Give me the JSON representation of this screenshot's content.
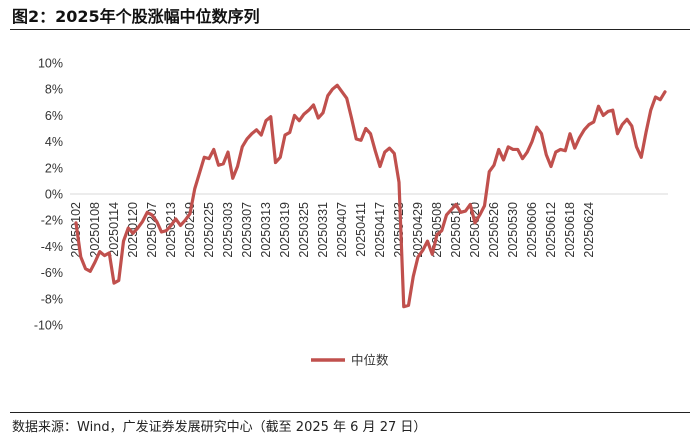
{
  "figure": {
    "title": "图2：2025年个股涨幅中位数序列",
    "source": "数据来源：Wind，广发证券发展研究中心（截至 2025 年 6 月 27 日）"
  },
  "chart_data": {
    "type": "line",
    "title": "",
    "xlabel": "",
    "ylabel": "",
    "ylim": [
      -0.1,
      0.1
    ],
    "y_ticks": [
      "10%",
      "8%",
      "6%",
      "4%",
      "2%",
      "0%",
      "-2%",
      "-4%",
      "-6%",
      "-8%",
      "-10%"
    ],
    "x_tick_labels": [
      "20250102",
      "20250108",
      "20250114",
      "20250120",
      "20250207",
      "20250213",
      "20250219",
      "20250225",
      "20250303",
      "20250307",
      "20250313",
      "20250319",
      "20250325",
      "20250331",
      "20250407",
      "20250411",
      "20250417",
      "20250423",
      "20250429",
      "20250508",
      "20250514",
      "20250520",
      "20250526",
      "20250530",
      "20250606",
      "20250612",
      "20250618",
      "20250624"
    ],
    "x_tick_every": 4,
    "legend_position": "bottom-center",
    "grid": false,
    "line_color": "#c0504d",
    "series": [
      {
        "name": "中位数",
        "values": [
          -0.022,
          -0.048,
          -0.057,
          -0.059,
          -0.052,
          -0.044,
          -0.047,
          -0.045,
          -0.068,
          -0.066,
          -0.036,
          -0.026,
          -0.03,
          -0.026,
          -0.021,
          -0.014,
          -0.016,
          -0.021,
          -0.029,
          -0.028,
          -0.024,
          -0.019,
          -0.024,
          -0.02,
          -0.015,
          0.004,
          0.016,
          0.028,
          0.027,
          0.034,
          0.022,
          0.023,
          0.032,
          0.012,
          0.021,
          0.036,
          0.042,
          0.046,
          0.049,
          0.045,
          0.056,
          0.059,
          0.024,
          0.028,
          0.045,
          0.047,
          0.06,
          0.056,
          0.061,
          0.064,
          0.068,
          0.058,
          0.062,
          0.075,
          0.08,
          0.083,
          0.078,
          0.073,
          0.058,
          0.042,
          0.041,
          0.05,
          0.046,
          0.033,
          0.021,
          0.032,
          0.035,
          0.031,
          0.009,
          -0.086,
          -0.085,
          -0.063,
          -0.048,
          -0.043,
          -0.036,
          -0.046,
          -0.031,
          -0.028,
          -0.016,
          -0.012,
          -0.008,
          -0.014,
          -0.013,
          -0.008,
          -0.022,
          -0.016,
          -0.009,
          0.017,
          0.022,
          0.034,
          0.026,
          0.036,
          0.034,
          0.034,
          0.027,
          0.032,
          0.04,
          0.051,
          0.046,
          0.03,
          0.021,
          0.032,
          0.034,
          0.033,
          0.046,
          0.035,
          0.043,
          0.049,
          0.053,
          0.055,
          0.067,
          0.06,
          0.063,
          0.064,
          0.046,
          0.053,
          0.057,
          0.052,
          0.036,
          0.028,
          0.047,
          0.064,
          0.074,
          0.072,
          0.078
        ]
      }
    ]
  }
}
